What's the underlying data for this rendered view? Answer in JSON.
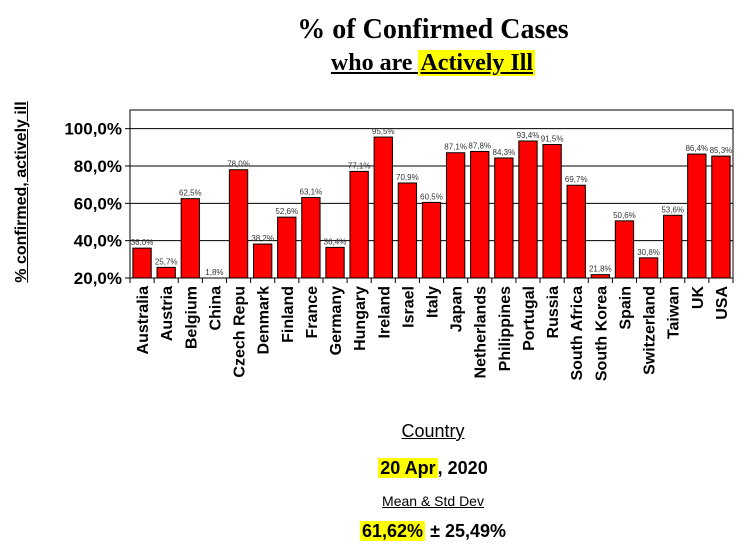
{
  "chart_data": {
    "type": "bar",
    "title": "% of Confirmed Cases",
    "subtitle_prefix": "who are ",
    "subtitle_highlight": "Actively Ill",
    "xlabel": "Country",
    "ylabel": "% confirmed, actively ill",
    "ylim": [
      20,
      110
    ],
    "yticks": [
      20,
      40,
      60,
      80,
      100
    ],
    "ytick_labels": [
      "20,0%",
      "40,0%",
      "60,0%",
      "80,0%",
      "100,0%"
    ],
    "grid": true,
    "bar_color": "#ff0000",
    "categories": [
      "Australia",
      "Austria",
      "Belgium",
      "China",
      "Czech Repu",
      "Denmark",
      "Finland",
      "France",
      "Germany",
      "Hungary",
      "Ireland",
      "Israel",
      "Italy",
      "Japan",
      "Netherlands",
      "Philippines",
      "Portugal",
      "Russia",
      "South Africa",
      "South Korea",
      "Spain",
      "Switzerland",
      "Taiwan",
      "UK",
      "USA"
    ],
    "values": [
      36.0,
      25.7,
      62.5,
      1.8,
      78.0,
      38.2,
      52.6,
      63.1,
      36.4,
      77.1,
      95.5,
      70.9,
      60.5,
      87.1,
      87.8,
      84.3,
      93.4,
      91.5,
      69.7,
      21.8,
      50.6,
      30.8,
      53.6,
      86.4,
      85.3
    ],
    "value_labels": [
      "36,0%",
      "25,7%",
      "62,5%",
      "1,8%",
      "78,0%",
      "38,2%",
      "52,6%",
      "63,1%",
      "36,4%",
      "77,1%",
      "95,5%",
      "70,9%",
      "60,5%",
      "87,1%",
      "87,8%",
      "84,3%",
      "93,4%",
      "91,5%",
      "69,7%",
      "21,8%",
      "50,6%",
      "30,8%",
      "53,6%",
      "86,4%",
      "85,3%"
    ]
  },
  "footer": {
    "date_highlight": "20 Apr",
    "date_rest": ", 2020",
    "stat_label": "Mean & Std Dev",
    "stat_highlight": "61,62%",
    "stat_rest": " ± 25,49%"
  },
  "colors": {
    "highlight": "#ffff00",
    "bar": "#ff0000"
  }
}
